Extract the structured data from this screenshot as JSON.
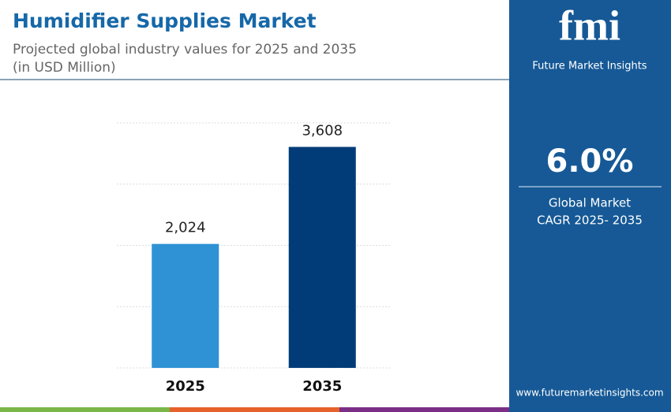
{
  "chart_data": {
    "type": "bar",
    "title": "Humidifier Supplies Market",
    "subtitle": "Projected global industry values for 2025 and 2035",
    "unit_note": "(in USD Million)",
    "categories": [
      "2025",
      "2035"
    ],
    "values": [
      2024,
      3608
    ],
    "value_labels": [
      "2,024",
      "3,608"
    ],
    "colors": [
      "#2e92d5",
      "#013c79"
    ],
    "ylim": [
      0,
      4000
    ],
    "yticks": [
      0,
      1000,
      2000,
      3000,
      4000
    ],
    "grid": true
  },
  "sidebar": {
    "logo": "fmi",
    "brand": "Future Market Insights",
    "cagr": "6.0%",
    "cagr_label_1": "Global Market",
    "cagr_label_2": "CAGR 2025- 2035",
    "website": "www.futuremarketinsights.com"
  }
}
